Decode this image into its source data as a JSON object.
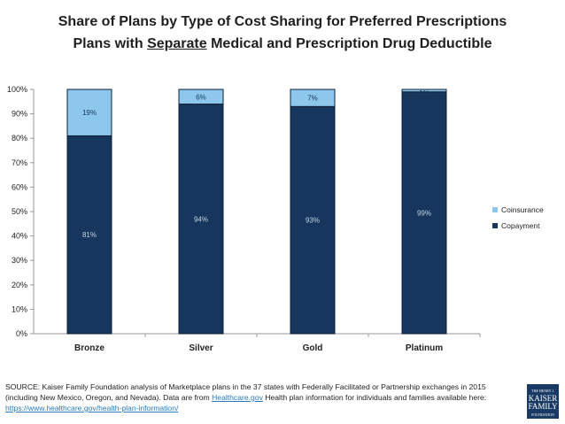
{
  "title_line1": "Share of Plans by Type of Cost Sharing for Preferred Prescriptions",
  "title_line2_pre": "Plans with ",
  "title_line2_underlined": "Separate",
  "title_line2_post": " Medical and Prescription Drug Deductible",
  "chart_data": {
    "type": "bar",
    "stacked": true,
    "categories": [
      "Bronze",
      "Silver",
      "Gold",
      "Platinum"
    ],
    "series": [
      {
        "name": "Copayment",
        "values": [
          81,
          94,
          93,
          99
        ],
        "labels": [
          "81%",
          "94%",
          "93%",
          "99%"
        ],
        "color": "#17365d"
      },
      {
        "name": "Coinsurance",
        "values": [
          19,
          6,
          7,
          1
        ],
        "labels": [
          "19%",
          "6%",
          "7%",
          "1%"
        ],
        "color": "#8dc8ec"
      }
    ],
    "ylim": [
      0,
      100
    ],
    "yticks": [
      "0%",
      "10%",
      "20%",
      "30%",
      "40%",
      "50%",
      "60%",
      "70%",
      "80%",
      "90%",
      "100%"
    ],
    "grid": false,
    "legend_placement": "right"
  },
  "source": {
    "text1": "SOURCE: Kaiser Family Foundation analysis of Marketplace plans in the 37 states with Federally Facilitated or Partnership exchanges in 2015 (including New Mexico, Oregon, and Nevada). Data are from ",
    "link1": "Healthcare.gov",
    "text2": " Health plan information for individuals and families available here: ",
    "link2": "https://www.healthcare.gov/health-plan-information/"
  },
  "logo": {
    "line1": "THE HENRY J.",
    "line2": "KAISER",
    "line3": "FAMILY",
    "line4": "FOUNDATION"
  }
}
